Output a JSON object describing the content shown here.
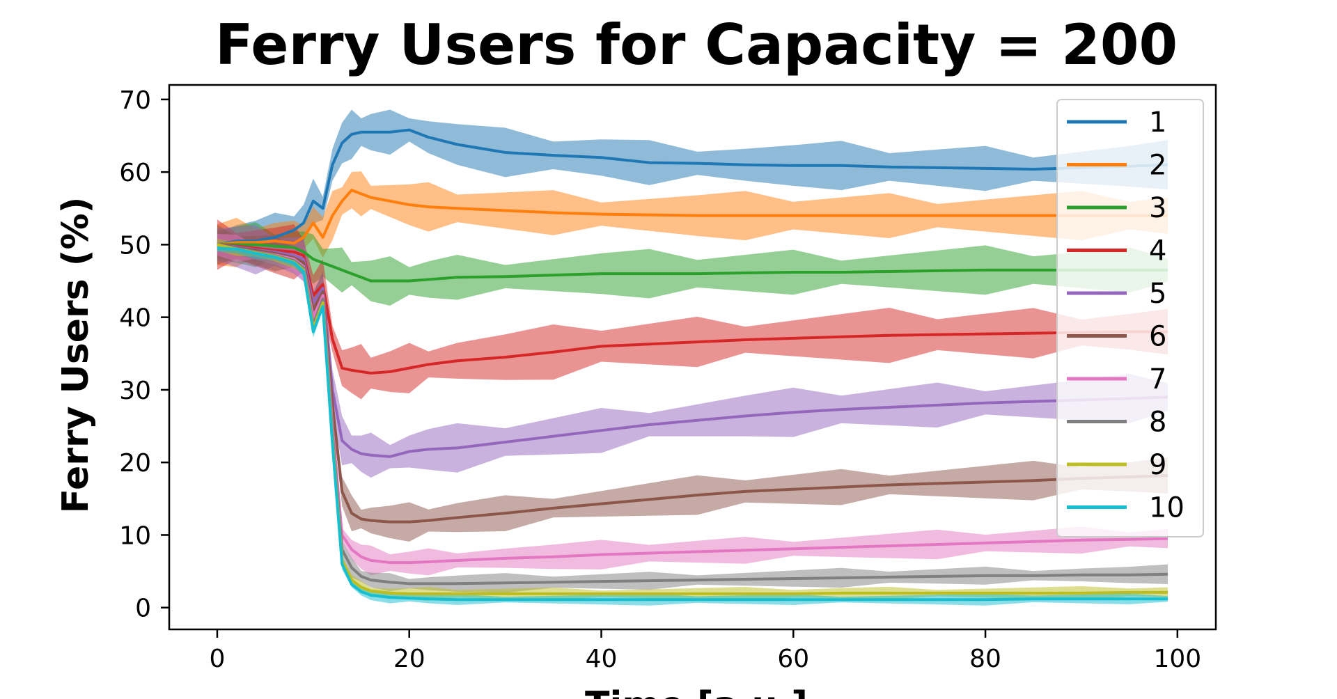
{
  "chart_data": {
    "type": "line",
    "title": "Ferry Users for Capacity = 200",
    "xlabel": "Time [a.u.]",
    "ylabel": "Ferry Users (%)",
    "xlim": [
      -5,
      104
    ],
    "ylim": [
      -3,
      72
    ],
    "x_ticks": [
      "0",
      "20",
      "40",
      "60",
      "80",
      "100"
    ],
    "y_ticks": [
      "0",
      "10",
      "20",
      "30",
      "40",
      "50",
      "60",
      "70"
    ],
    "x_tick_values": [
      0,
      20,
      40,
      60,
      80,
      100
    ],
    "y_tick_values": [
      0,
      10,
      20,
      30,
      40,
      50,
      60,
      70
    ],
    "legend_position": "upper-right",
    "grid": false,
    "x": [
      0,
      2,
      4,
      6,
      8,
      9,
      10,
      11,
      12,
      13,
      14,
      15,
      16,
      18,
      20,
      22,
      25,
      30,
      35,
      40,
      45,
      50,
      55,
      60,
      65,
      70,
      75,
      80,
      85,
      90,
      95,
      99
    ],
    "series": [
      {
        "name": "1",
        "color": "#1f77b4",
        "band": 2.5,
        "values": [
          50,
          50.5,
          50.5,
          51,
          52,
          53,
          56,
          55,
          61,
          64,
          65.2,
          65.5,
          65.5,
          65.5,
          65.8,
          64.8,
          63.8,
          62.7,
          62.3,
          62,
          61.3,
          61.2,
          61,
          60.9,
          60.9,
          60.7,
          60.6,
          60.5,
          60.4,
          60.6,
          60.8,
          61
        ]
      },
      {
        "name": "2",
        "color": "#ff7f0e",
        "band": 2.5,
        "values": [
          50,
          50.3,
          50.3,
          50.5,
          50.2,
          51,
          53,
          51,
          54,
          56,
          57.5,
          57,
          56.5,
          56,
          55.5,
          55.2,
          55,
          54.7,
          54.4,
          54.2,
          54.1,
          54,
          54,
          54,
          54,
          54,
          54,
          54,
          54,
          54,
          54,
          54
        ]
      },
      {
        "name": "3",
        "color": "#2ca02c",
        "band": 2.5,
        "values": [
          50,
          50,
          50,
          49.8,
          49.6,
          49,
          48,
          47.5,
          47,
          46.5,
          46,
          45.5,
          45,
          45,
          45,
          45.2,
          45.5,
          45.6,
          45.8,
          46,
          46,
          46,
          46.1,
          46.2,
          46.2,
          46.3,
          46.4,
          46.5,
          46.5,
          46.5,
          46.5,
          46.5
        ]
      },
      {
        "name": "4",
        "color": "#d62728",
        "band": 2.8,
        "values": [
          50,
          49.8,
          49.5,
          49.2,
          49,
          48.5,
          43,
          44.5,
          37,
          33,
          32.7,
          32.5,
          32.3,
          32.5,
          33,
          33.5,
          34,
          34.5,
          35.2,
          36,
          36.3,
          36.6,
          36.9,
          37.1,
          37.3,
          37.5,
          37.6,
          37.7,
          37.8,
          37.9,
          38,
          38
        ]
      },
      {
        "name": "5",
        "color": "#9467bd",
        "band": 2.5,
        "values": [
          50,
          49.7,
          49.3,
          49,
          48.5,
          48,
          42,
          44,
          30,
          23,
          21.8,
          21.2,
          21,
          20.8,
          21.5,
          21.8,
          22,
          22.8,
          23.6,
          24.4,
          25.2,
          25.8,
          26.4,
          26.9,
          27.3,
          27.6,
          27.9,
          28.2,
          28.4,
          28.6,
          28.8,
          29
        ]
      },
      {
        "name": "6",
        "color": "#8c564b",
        "band": 2.0,
        "values": [
          50,
          49.6,
          49.2,
          48.8,
          48.2,
          47.5,
          41,
          43.5,
          28,
          16,
          13,
          12.2,
          12,
          11.8,
          11.8,
          12,
          12.4,
          13,
          13.7,
          14.3,
          14.9,
          15.5,
          16,
          16.3,
          16.6,
          16.9,
          17.1,
          17.3,
          17.5,
          17.8,
          18,
          18.2
        ]
      },
      {
        "name": "7",
        "color": "#e377c2",
        "band": 1.5,
        "values": [
          50,
          49.5,
          49,
          48.6,
          48,
          47,
          40,
          43,
          25,
          10,
          8,
          7,
          6.5,
          6.2,
          6.2,
          6.3,
          6.5,
          6.8,
          7,
          7.3,
          7.5,
          7.7,
          7.9,
          8.1,
          8.3,
          8.5,
          8.7,
          8.9,
          9.1,
          9.3,
          9.4,
          9.5
        ]
      },
      {
        "name": "8",
        "color": "#7f7f7f",
        "band": 1.0,
        "values": [
          50,
          49.5,
          49,
          48.5,
          47.8,
          46.8,
          39,
          42.5,
          24,
          8,
          5.5,
          4.3,
          3.8,
          3.5,
          3.3,
          3.3,
          3.3,
          3.4,
          3.5,
          3.6,
          3.7,
          3.8,
          3.9,
          4,
          4.1,
          4.2,
          4.3,
          4.4,
          4.4,
          4.5,
          4.5,
          4.6
        ]
      },
      {
        "name": "9",
        "color": "#bcbd22",
        "band": 0.7,
        "values": [
          50,
          49.4,
          48.9,
          48.4,
          47.6,
          46.5,
          38.5,
          42,
          23,
          6.5,
          3.8,
          2.8,
          2.3,
          2,
          1.9,
          1.9,
          1.9,
          1.9,
          1.9,
          1.9,
          1.9,
          1.9,
          1.9,
          1.9,
          2,
          2,
          2,
          2,
          2,
          2,
          2.1,
          2.1
        ]
      },
      {
        "name": "10",
        "color": "#17becf",
        "band": 0.6,
        "values": [
          49.5,
          49.4,
          48.8,
          48.3,
          47.5,
          46.3,
          38,
          41.5,
          22.5,
          6,
          3.2,
          2.2,
          1.7,
          1.4,
          1.3,
          1.2,
          1.1,
          1.1,
          1.1,
          1.1,
          1.1,
          1.1,
          1.1,
          1.1,
          1.1,
          1.1,
          1.1,
          1.1,
          1.2,
          1.2,
          1.2,
          1.2
        ]
      }
    ]
  }
}
